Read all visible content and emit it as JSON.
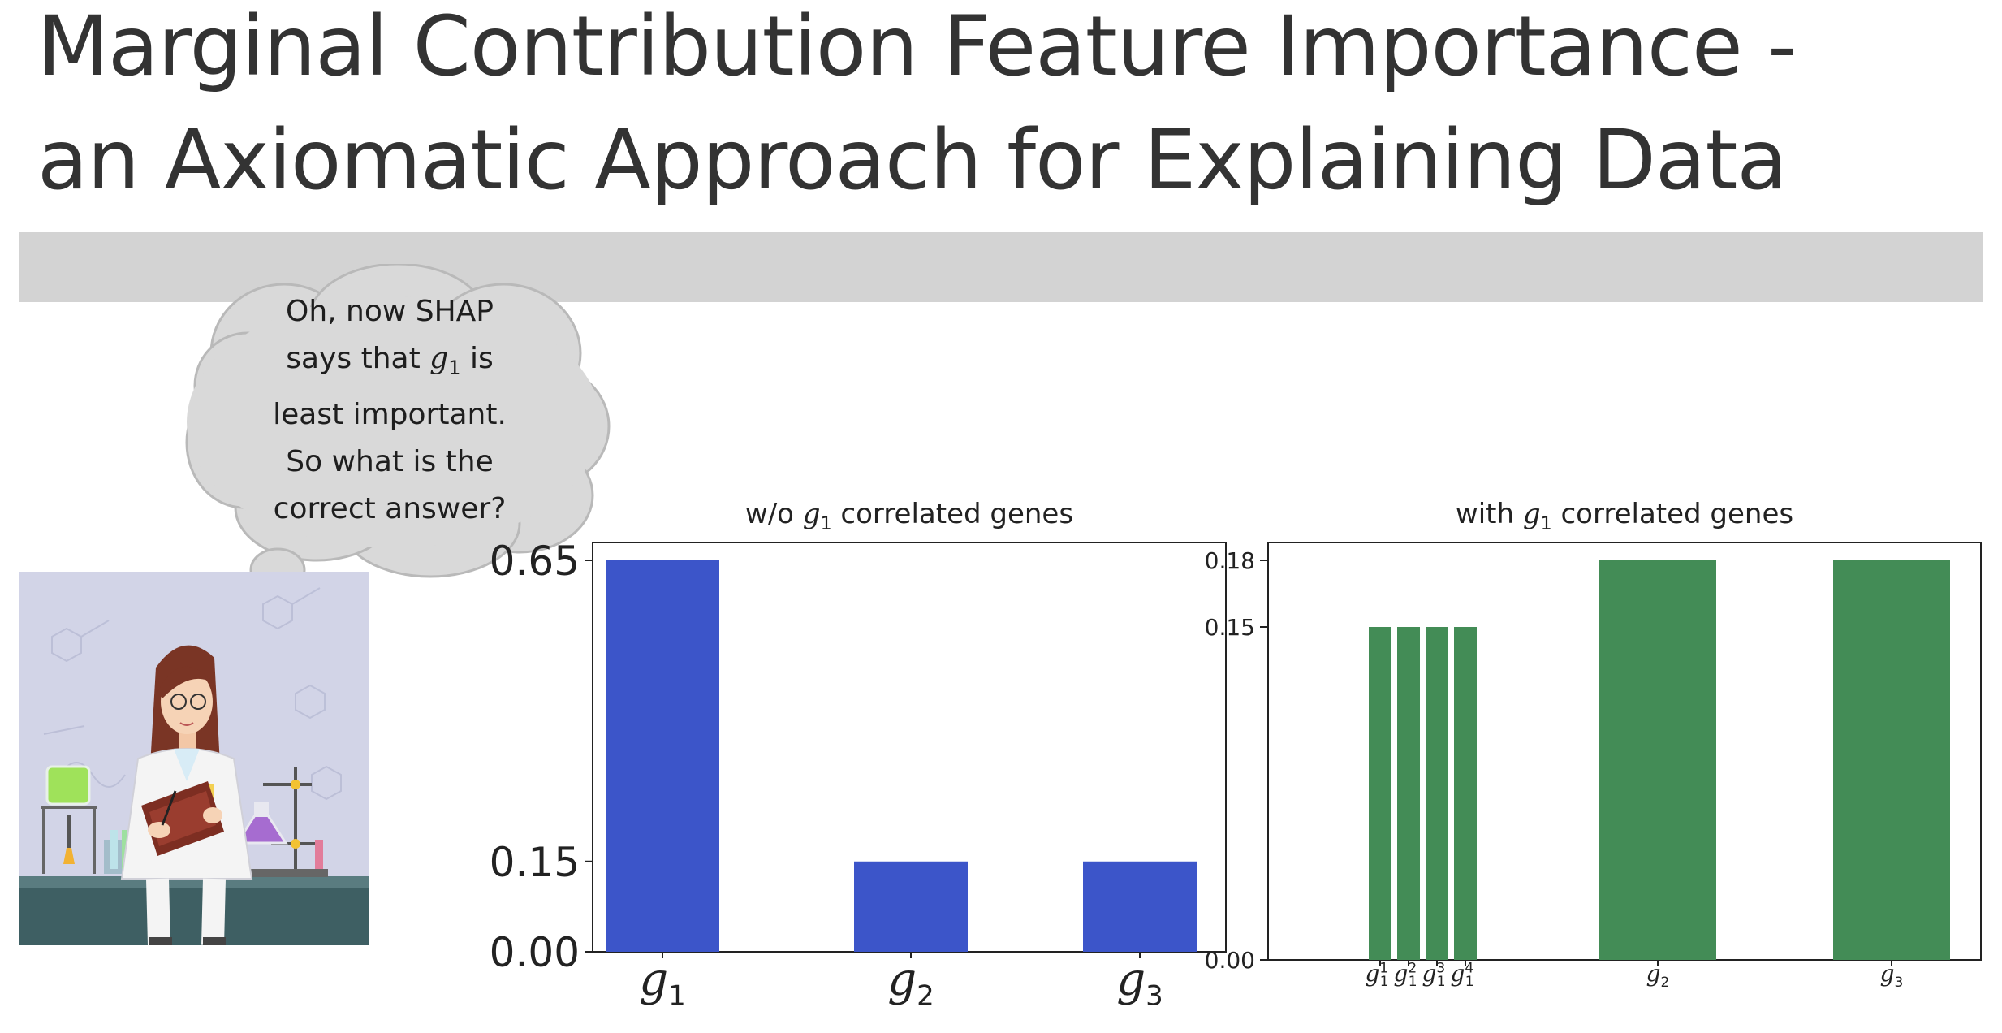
{
  "slide": {
    "title_line1": "Marginal Contribution Feature Importance -",
    "title_line2": "an Axiomatic Approach for Explaining Data"
  },
  "thought_bubble": {
    "line1": "Oh, now SHAP",
    "line2_pre": "says that ",
    "line2_var": "g",
    "line2_sub": "1",
    "line2_post": " is",
    "line3": "least important.",
    "line4": "So what is the",
    "line5": "correct answer?"
  },
  "colors": {
    "bar_left": "#3c55c9",
    "bar_right": "#438c56",
    "band": "#d3d3d3",
    "bubble": "#d9d9d9"
  },
  "illustration": {
    "icon": "scientist-in-lab-illustration"
  },
  "chart_data": [
    {
      "type": "bar",
      "title_pre": "w/o ",
      "title_var": "g",
      "title_sub": "1",
      "title_post": " correlated genes",
      "categories": [
        {
          "var": "g",
          "sub": "1"
        },
        {
          "var": "g",
          "sub": "2"
        },
        {
          "var": "g",
          "sub": "3"
        }
      ],
      "values": [
        0.65,
        0.15,
        0.15
      ],
      "yticks": [
        0.0,
        0.15,
        0.65
      ],
      "ytick_labels": [
        "0.00",
        "0.15",
        "0.65"
      ],
      "ylim": [
        0,
        0.65
      ],
      "xlabel": "",
      "ylabel": "",
      "grid": false,
      "color": "#3c55c9"
    },
    {
      "type": "bar",
      "title_pre": "with ",
      "title_var": "g",
      "title_sub": "1",
      "title_post": " correlated genes",
      "categories": [
        {
          "var": "g",
          "sub": "1",
          "sup": "1"
        },
        {
          "var": "g",
          "sub": "1",
          "sup": "2"
        },
        {
          "var": "g",
          "sub": "1",
          "sup": "3"
        },
        {
          "var": "g",
          "sub": "1",
          "sup": "4"
        },
        {
          "var": "g",
          "sub": "2"
        },
        {
          "var": "g",
          "sub": "3"
        }
      ],
      "values": [
        0.15,
        0.15,
        0.15,
        0.15,
        0.18,
        0.18
      ],
      "yticks": [
        0.0,
        0.15,
        0.18
      ],
      "ytick_labels": [
        "0.00",
        "0.15",
        "0.18"
      ],
      "ylim": [
        0,
        0.18
      ],
      "xlabel": "",
      "ylabel": "",
      "grid": false,
      "color": "#438c56"
    }
  ]
}
